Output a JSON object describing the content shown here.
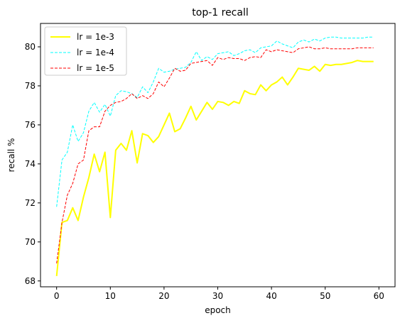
{
  "chart_data": {
    "type": "line",
    "title": "top-1 recall",
    "xlabel": "epoch",
    "ylabel": "recall %",
    "xlim": [
      -3,
      63
    ],
    "ylim": [
      67.7,
      81.2
    ],
    "xticks": [
      0,
      10,
      20,
      30,
      40,
      50,
      60
    ],
    "yticks": [
      68,
      70,
      72,
      74,
      76,
      78,
      80
    ],
    "grid": false,
    "legend_position": "top-left",
    "x": [
      0,
      1,
      2,
      3,
      4,
      5,
      6,
      7,
      8,
      9,
      10,
      11,
      12,
      13,
      14,
      15,
      16,
      17,
      18,
      19,
      20,
      21,
      22,
      23,
      24,
      25,
      26,
      27,
      28,
      29,
      30,
      31,
      32,
      33,
      34,
      35,
      36,
      37,
      38,
      39,
      40,
      41,
      42,
      43,
      44,
      45,
      46,
      47,
      48,
      49,
      50,
      51,
      52,
      53,
      54,
      55,
      56,
      57,
      58,
      59
    ],
    "series": [
      {
        "name": "lr = 1e-3",
        "color": "#ffff00",
        "style": "solid",
        "values": [
          68.25,
          71.0,
          71.1,
          71.75,
          71.1,
          72.3,
          73.3,
          74.5,
          73.6,
          74.6,
          71.25,
          74.7,
          75.05,
          74.7,
          75.7,
          74.05,
          75.55,
          75.45,
          75.1,
          75.4,
          76.0,
          76.6,
          75.65,
          75.8,
          76.35,
          76.95,
          76.25,
          76.7,
          77.15,
          76.8,
          77.2,
          77.15,
          77.0,
          77.2,
          77.1,
          77.75,
          77.6,
          77.55,
          78.05,
          77.75,
          78.05,
          78.2,
          78.45,
          78.05,
          78.45,
          78.9,
          78.85,
          78.8,
          79.0,
          78.75,
          79.1,
          79.05,
          79.1,
          79.1,
          79.15,
          79.2,
          79.3,
          79.25,
          79.25,
          79.25
        ]
      },
      {
        "name": "lr = 1e-4",
        "color": "#00ffff",
        "style": "dashed",
        "values": [
          71.8,
          74.2,
          74.6,
          76.0,
          75.15,
          75.6,
          76.7,
          77.15,
          76.65,
          77.05,
          76.45,
          77.5,
          77.75,
          77.7,
          77.6,
          77.4,
          77.95,
          77.65,
          78.2,
          78.9,
          78.7,
          78.75,
          78.85,
          78.9,
          78.95,
          79.2,
          79.75,
          79.3,
          79.5,
          79.35,
          79.65,
          79.7,
          79.75,
          79.55,
          79.65,
          79.8,
          79.85,
          79.7,
          79.95,
          80.0,
          80.05,
          80.3,
          80.15,
          80.05,
          79.95,
          80.25,
          80.35,
          80.25,
          80.4,
          80.3,
          80.45,
          80.5,
          80.5,
          80.45,
          80.45,
          80.45,
          80.45,
          80.45,
          80.5,
          80.5
        ]
      },
      {
        "name": "lr = 1e-5",
        "color": "#ff0000",
        "style": "dashed",
        "values": [
          68.9,
          71.0,
          72.4,
          73.0,
          74.0,
          74.2,
          75.7,
          75.9,
          75.9,
          76.7,
          77.0,
          77.15,
          77.2,
          77.35,
          77.6,
          77.35,
          77.5,
          77.35,
          77.6,
          78.2,
          77.95,
          78.4,
          78.9,
          78.75,
          78.8,
          79.15,
          79.2,
          79.25,
          79.3,
          79.05,
          79.45,
          79.35,
          79.45,
          79.4,
          79.4,
          79.3,
          79.45,
          79.5,
          79.45,
          79.85,
          79.75,
          79.85,
          79.8,
          79.75,
          79.7,
          79.9,
          79.95,
          80.0,
          79.9,
          79.9,
          79.95,
          79.9,
          79.9,
          79.9,
          79.9,
          79.9,
          79.95,
          79.95,
          79.95,
          79.95
        ]
      }
    ]
  }
}
